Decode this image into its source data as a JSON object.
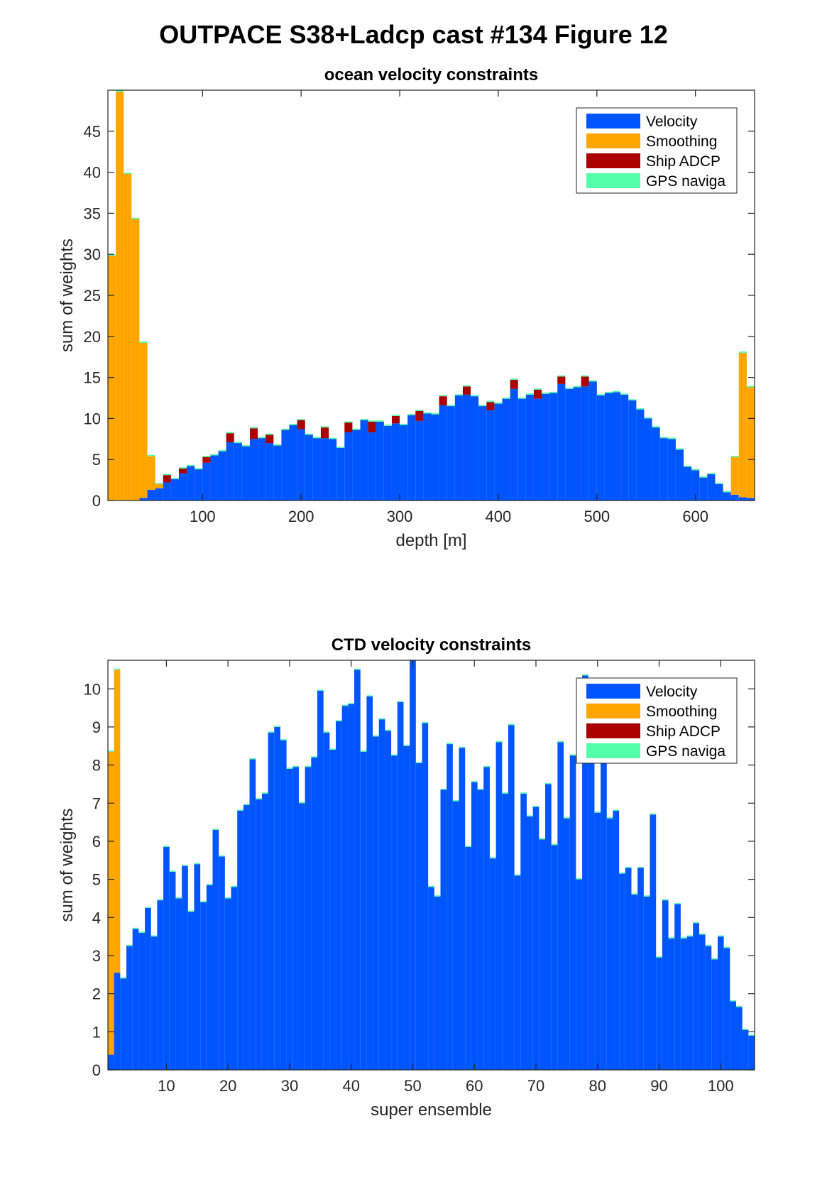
{
  "figure_title": "OUTPACE S38+Ladcp cast #134  Figure 12",
  "colors": {
    "velocity": "#0055ff",
    "smoothing": "#ffa500",
    "ship_adcp": "#aa0000",
    "gps_navigation": "#55ffaa"
  },
  "chart_data": [
    {
      "type": "bar",
      "stacked": true,
      "title": "ocean velocity constraints",
      "xlabel": "depth [m]",
      "ylabel": "sum of weights",
      "xlim": [
        4,
        660
      ],
      "ylim": [
        0,
        50
      ],
      "xticks": [
        100,
        200,
        300,
        400,
        500,
        600
      ],
      "yticks": [
        0,
        5,
        10,
        15,
        20,
        25,
        30,
        35,
        40,
        45
      ],
      "legend": [
        "Velocity",
        "Smoothing",
        "Ship ADCP",
        "GPS naviga"
      ],
      "legend_position": "top-right",
      "bin_width": 8,
      "x": [
        8,
        16,
        24,
        32,
        40,
        48,
        56,
        64,
        72,
        80,
        88,
        96,
        104,
        112,
        120,
        128,
        136,
        144,
        152,
        160,
        168,
        176,
        184,
        192,
        200,
        208,
        216,
        224,
        232,
        240,
        248,
        256,
        264,
        272,
        280,
        288,
        296,
        304,
        312,
        320,
        328,
        336,
        344,
        352,
        360,
        368,
        376,
        384,
        392,
        400,
        408,
        416,
        424,
        432,
        440,
        448,
        456,
        464,
        472,
        480,
        488,
        496,
        504,
        512,
        520,
        528,
        536,
        544,
        552,
        560,
        568,
        576,
        584,
        592,
        600,
        608,
        616,
        624,
        632,
        640,
        648,
        656
      ],
      "series": [
        {
          "name": "Velocity",
          "values": [
            0,
            0,
            0,
            0,
            0.3,
            1.3,
            1.5,
            2.2,
            2.6,
            3.3,
            4.2,
            3.8,
            4.6,
            5.5,
            6.0,
            7.1,
            7.0,
            6.6,
            7.5,
            7.6,
            7.0,
            6.7,
            8.6,
            9.2,
            8.7,
            8.0,
            7.6,
            7.6,
            7.5,
            6.4,
            8.3,
            8.6,
            9.8,
            8.3,
            9.6,
            9.1,
            9.4,
            9.2,
            10.4,
            9.7,
            10.6,
            10.5,
            11.6,
            11.5,
            12.8,
            12.9,
            12.7,
            11.5,
            11.0,
            11.8,
            12.4,
            13.6,
            12.4,
            12.9,
            12.4,
            13.0,
            13.1,
            14.2,
            13.6,
            13.8,
            13.9,
            14.5,
            12.8,
            13.1,
            13.2,
            12.9,
            12.2,
            11.1,
            10.0,
            8.9,
            7.6,
            7.5,
            6.2,
            4.1,
            3.7,
            2.8,
            3.2,
            2.0,
            1.0,
            0.7,
            0.4,
            0.3
          ]
        },
        {
          "name": "Smoothing",
          "values": [
            29.8,
            49.8,
            39.8,
            34.3,
            18.9,
            4.1,
            0.5,
            0,
            0,
            0,
            0,
            0,
            0,
            0,
            0,
            0,
            0,
            0,
            0,
            0,
            0,
            0,
            0,
            0,
            0,
            0,
            0,
            0,
            0,
            0,
            0,
            0,
            0,
            0,
            0,
            0,
            0,
            0,
            0,
            0,
            0,
            0,
            0,
            0,
            0,
            0,
            0,
            0,
            0,
            0,
            0,
            0,
            0,
            0,
            0,
            0,
            0,
            0,
            0,
            0,
            0,
            0,
            0,
            0,
            0,
            0,
            0,
            0,
            0,
            0,
            0,
            0,
            0,
            0,
            0,
            0,
            0,
            0,
            0,
            4.6,
            17.6,
            13.5
          ]
        },
        {
          "name": "Ship ADCP",
          "values": [
            0,
            0,
            0,
            0,
            0,
            0,
            0,
            0.9,
            0,
            0.6,
            0,
            0,
            0.7,
            0,
            0,
            1.1,
            0,
            0,
            1.3,
            0,
            1.0,
            0,
            0,
            0,
            1.1,
            0,
            0,
            1.3,
            0,
            0,
            1.2,
            0,
            0,
            1.3,
            0,
            0,
            0.9,
            0,
            0,
            1.2,
            0,
            0,
            1.1,
            0,
            0,
            1.0,
            0,
            0,
            1.0,
            0,
            0,
            1.1,
            0,
            0,
            1.1,
            0,
            0,
            0.9,
            0,
            0,
            1.2,
            0,
            0,
            0,
            0,
            0,
            0,
            0,
            0,
            0,
            0,
            0,
            0,
            0,
            0,
            0,
            0,
            0,
            0,
            0,
            0,
            0
          ]
        },
        {
          "name": "GPS naviga",
          "values": [
            0.15,
            0.15,
            0.15,
            0.15,
            0.15,
            0.15,
            0.15,
            0.15,
            0.15,
            0.15,
            0.15,
            0.15,
            0.15,
            0.15,
            0.15,
            0.15,
            0.15,
            0.15,
            0.15,
            0.15,
            0.15,
            0.15,
            0.15,
            0.15,
            0.15,
            0.15,
            0.15,
            0.15,
            0.15,
            0.15,
            0.15,
            0.15,
            0.15,
            0.15,
            0.15,
            0.15,
            0.15,
            0.15,
            0.15,
            0.15,
            0.15,
            0.15,
            0.15,
            0.15,
            0.15,
            0.15,
            0.15,
            0.15,
            0.15,
            0.15,
            0.15,
            0.15,
            0.15,
            0.15,
            0.15,
            0.15,
            0.15,
            0.15,
            0.15,
            0.15,
            0.15,
            0.15,
            0.15,
            0.15,
            0.15,
            0.15,
            0.15,
            0.15,
            0.15,
            0.15,
            0.15,
            0.15,
            0.15,
            0.15,
            0.15,
            0.15,
            0.15,
            0.15,
            0.15,
            0.15,
            0.15,
            0.15
          ]
        }
      ]
    },
    {
      "type": "bar",
      "stacked": true,
      "title": "CTD velocity constraints",
      "xlabel": "super ensemble",
      "ylabel": "sum of weights",
      "xlim": [
        0.5,
        105.5
      ],
      "ylim": [
        0,
        10.75
      ],
      "xticks": [
        10,
        20,
        30,
        40,
        50,
        60,
        70,
        80,
        90,
        100
      ],
      "yticks": [
        0,
        1,
        2,
        3,
        4,
        5,
        6,
        7,
        8,
        9,
        10
      ],
      "legend": [
        "Velocity",
        "Smoothing",
        "Ship ADCP",
        "GPS naviga"
      ],
      "legend_position": "top-right",
      "bin_width": 1,
      "x": [
        1,
        2,
        3,
        4,
        5,
        6,
        7,
        8,
        9,
        10,
        11,
        12,
        13,
        14,
        15,
        16,
        17,
        18,
        19,
        20,
        21,
        22,
        23,
        24,
        25,
        26,
        27,
        28,
        29,
        30,
        31,
        32,
        33,
        34,
        35,
        36,
        37,
        38,
        39,
        40,
        41,
        42,
        43,
        44,
        45,
        46,
        47,
        48,
        49,
        50,
        51,
        52,
        53,
        54,
        55,
        56,
        57,
        58,
        59,
        60,
        61,
        62,
        63,
        64,
        65,
        66,
        67,
        68,
        69,
        70,
        71,
        72,
        73,
        74,
        75,
        76,
        77,
        78,
        79,
        80,
        81,
        82,
        83,
        84,
        85,
        86,
        87,
        88,
        89,
        90,
        91,
        92,
        93,
        94,
        95,
        96,
        97,
        98,
        99,
        100,
        101,
        102,
        103,
        104,
        105
      ],
      "series": [
        {
          "name": "Velocity",
          "values": [
            0.4,
            2.55,
            2.4,
            3.25,
            3.7,
            3.6,
            4.25,
            3.5,
            4.45,
            5.85,
            5.2,
            4.5,
            5.35,
            4.15,
            5.4,
            4.4,
            4.85,
            6.3,
            5.6,
            4.5,
            4.8,
            6.8,
            6.95,
            8.15,
            7.1,
            7.25,
            8.85,
            9.0,
            8.65,
            7.9,
            7.95,
            7.0,
            7.95,
            8.2,
            9.95,
            8.85,
            8.4,
            9.15,
            9.55,
            9.6,
            10.5,
            8.35,
            9.8,
            8.75,
            9.2,
            8.9,
            8.25,
            9.65,
            8.5,
            10.75,
            8.05,
            9.1,
            4.8,
            4.55,
            7.35,
            8.55,
            7.05,
            8.45,
            5.85,
            7.55,
            7.35,
            7.95,
            5.55,
            8.6,
            7.25,
            9.05,
            5.1,
            7.25,
            6.65,
            6.9,
            6.05,
            7.5,
            5.9,
            8.6,
            6.6,
            8.25,
            5.0,
            10.35,
            9.85,
            6.75,
            9.5,
            6.6,
            6.8,
            5.15,
            5.3,
            4.6,
            5.3,
            4.55,
            6.7,
            2.95,
            4.45,
            3.45,
            4.35,
            3.45,
            3.5,
            3.85,
            3.55,
            3.25,
            2.9,
            3.5,
            3.2,
            1.8,
            1.65,
            1.05,
            0.9
          ]
        },
        {
          "name": "Smoothing",
          "values": [
            7.95,
            7.95,
            0,
            0,
            0,
            0,
            0,
            0,
            0,
            0,
            0,
            0,
            0,
            0,
            0,
            0,
            0,
            0,
            0,
            0,
            0,
            0,
            0,
            0,
            0,
            0,
            0,
            0,
            0,
            0,
            0,
            0,
            0,
            0,
            0,
            0,
            0,
            0,
            0,
            0,
            0,
            0,
            0,
            0,
            0,
            0,
            0,
            0,
            0,
            0,
            0,
            0,
            0,
            0,
            0,
            0,
            0,
            0,
            0,
            0,
            0,
            0,
            0,
            0,
            0,
            0,
            0,
            0,
            0,
            0,
            0,
            0,
            0,
            0,
            0,
            0,
            0,
            0,
            0,
            0,
            0,
            0,
            0,
            0,
            0,
            0,
            0,
            0,
            0,
            0,
            0,
            0,
            0,
            0,
            0,
            0,
            0,
            0,
            0,
            0,
            0,
            0,
            0,
            0,
            0
          ]
        },
        {
          "name": "Ship ADCP",
          "values": [
            0,
            0,
            0,
            0,
            0,
            0,
            0,
            0,
            0,
            0,
            0,
            0,
            0,
            0,
            0,
            0,
            0,
            0,
            0,
            0,
            0,
            0,
            0,
            0,
            0,
            0,
            0,
            0,
            0,
            0,
            0,
            0,
            0,
            0,
            0,
            0,
            0,
            0,
            0,
            0,
            0,
            0,
            0,
            0,
            0,
            0,
            0,
            0,
            0,
            0,
            0,
            0,
            0,
            0,
            0,
            0,
            0,
            0,
            0,
            0,
            0,
            0,
            0,
            0,
            0,
            0,
            0,
            0,
            0,
            0,
            0,
            0,
            0,
            0,
            0,
            0,
            0,
            0,
            0,
            0,
            0,
            0,
            0,
            0,
            0,
            0,
            0,
            0,
            0,
            0,
            0,
            0,
            0,
            0,
            0,
            0,
            0,
            0,
            0,
            0,
            0,
            0,
            0,
            0,
            0
          ]
        },
        {
          "name": "GPS naviga",
          "values": [
            0.03,
            0.03,
            0.03,
            0.03,
            0.03,
            0.03,
            0.03,
            0.03,
            0.03,
            0.03,
            0.03,
            0.03,
            0.03,
            0.03,
            0.03,
            0.03,
            0.03,
            0.03,
            0.03,
            0.03,
            0.03,
            0.03,
            0.03,
            0.03,
            0.03,
            0.03,
            0.03,
            0.03,
            0.03,
            0.03,
            0.03,
            0.03,
            0.03,
            0.03,
            0.03,
            0.03,
            0.03,
            0.03,
            0.03,
            0.03,
            0.03,
            0.03,
            0.03,
            0.03,
            0.03,
            0.03,
            0.03,
            0.03,
            0.03,
            0.03,
            0.03,
            0.03,
            0.03,
            0.03,
            0.03,
            0.03,
            0.03,
            0.03,
            0.03,
            0.03,
            0.03,
            0.03,
            0.03,
            0.03,
            0.03,
            0.03,
            0.03,
            0.03,
            0.03,
            0.03,
            0.03,
            0.03,
            0.03,
            0.03,
            0.03,
            0.03,
            0.03,
            0.03,
            0.03,
            0.03,
            0.03,
            0.03,
            0.03,
            0.03,
            0.03,
            0.03,
            0.03,
            0.03,
            0.03,
            0.03,
            0.03,
            0.03,
            0.03,
            0.03,
            0.03,
            0.03,
            0.03,
            0.03,
            0.03,
            0.03,
            0.03,
            0.03,
            0.03,
            0.03,
            0.03
          ]
        }
      ]
    }
  ]
}
